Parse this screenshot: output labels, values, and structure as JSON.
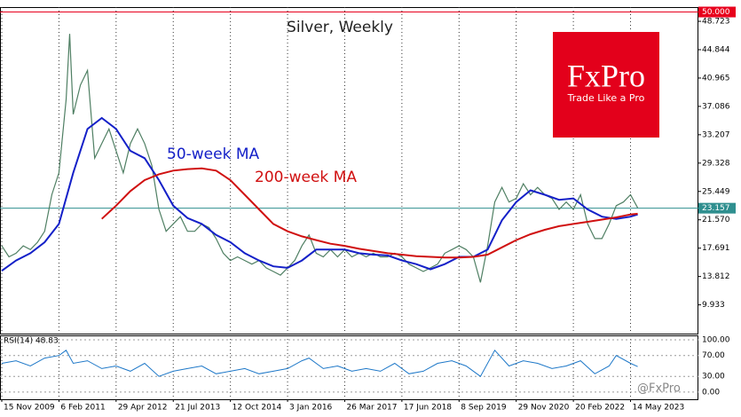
{
  "chart_data": [
    {
      "type": "line",
      "title": "Silver, Weekly",
      "xlim": [
        -2,
        780
      ],
      "xticks": [
        {
          "value": 0,
          "label": "15 Nov 2009"
        },
        {
          "value": 64,
          "label": "6 Feb 2011"
        },
        {
          "value": 128,
          "label": "29 Apr 2012"
        },
        {
          "value": 192,
          "label": "21 Jul 2013"
        },
        {
          "value": 256,
          "label": "12 Oct 2014"
        },
        {
          "value": 320,
          "label": "3 Jan 2016"
        },
        {
          "value": 384,
          "label": "26 Mar 2017"
        },
        {
          "value": 448,
          "label": "17 Jun 2018"
        },
        {
          "value": 512,
          "label": "8 Sep 2019"
        },
        {
          "value": 576,
          "label": "29 Nov 2020"
        },
        {
          "value": 640,
          "label": "20 Feb 2022"
        },
        {
          "value": 704,
          "label": "14 May 2023"
        }
      ],
      "ylim": [
        6.0,
        50.67
      ],
      "yticks": [
        48.723,
        44.844,
        40.965,
        37.086,
        33.207,
        29.328,
        25.449,
        {
          "value": 21.57,
          "label": "21.570"
        },
        17.691,
        13.812,
        9.933
      ],
      "hlines": [
        {
          "value": 50,
          "label": "50.000",
          "color": "#e8001c"
        },
        {
          "value": 23.157,
          "label": "23.157",
          "color": "#2f8f8f"
        }
      ],
      "vgrid": true,
      "series": [
        {
          "color": "#4f7f63",
          "x": [
            0,
            8,
            16,
            24,
            32,
            40,
            48,
            56,
            64,
            72,
            76,
            80,
            88,
            96,
            104,
            112,
            120,
            128,
            136,
            144,
            152,
            160,
            168,
            176,
            184,
            192,
            200,
            208,
            216,
            224,
            232,
            240,
            248,
            256,
            264,
            272,
            280,
            288,
            296,
            304,
            312,
            320,
            328,
            336,
            344,
            352,
            360,
            368,
            376,
            384,
            392,
            400,
            408,
            416,
            424,
            432,
            440,
            448,
            456,
            464,
            472,
            480,
            488,
            496,
            504,
            512,
            520,
            528,
            536,
            544,
            552,
            560,
            568,
            576,
            584,
            592,
            600,
            608,
            616,
            624,
            632,
            640,
            648,
            656,
            664,
            672,
            680,
            688,
            696,
            704,
            712
          ],
          "values": [
            18,
            16.5,
            17,
            18,
            17.5,
            18.5,
            20,
            25,
            28,
            38,
            47,
            36,
            40,
            42,
            30,
            32,
            34,
            31,
            28,
            32,
            34,
            32,
            29,
            23,
            20,
            21,
            22,
            20,
            20,
            21,
            20.5,
            19,
            17,
            16,
            16.5,
            16,
            15.5,
            16,
            15,
            14.5,
            14,
            15,
            16,
            18,
            19.5,
            17,
            16.5,
            17.5,
            16.5,
            17.5,
            16.5,
            17,
            16.5,
            17,
            16.5,
            16.5,
            17,
            16.5,
            15.5,
            15,
            14.5,
            15,
            15.5,
            17,
            17.5,
            18,
            17.5,
            16.5,
            13,
            18,
            24,
            26,
            24,
            24.5,
            26.5,
            25,
            26,
            25,
            24.5,
            23,
            24,
            23,
            25,
            21,
            19,
            19,
            21,
            23.5,
            24,
            25,
            23.2
          ]
        },
        {
          "name": "50-week MA",
          "color": "#1420c8",
          "x": [
            0,
            16,
            32,
            48,
            64,
            80,
            96,
            112,
            128,
            144,
            160,
            176,
            192,
            208,
            224,
            240,
            256,
            272,
            288,
            304,
            320,
            336,
            352,
            368,
            384,
            400,
            416,
            432,
            448,
            464,
            480,
            496,
            512,
            528,
            544,
            560,
            576,
            592,
            608,
            624,
            640,
            656,
            672,
            688,
            704,
            712
          ],
          "values": [
            14.6,
            16,
            17,
            18.5,
            21,
            28,
            34,
            35.5,
            34,
            31,
            30,
            27,
            23.5,
            21.8,
            21,
            19.5,
            18.5,
            17,
            16,
            15.2,
            15,
            16,
            17.5,
            17.5,
            17.5,
            17,
            16.8,
            16.7,
            16,
            15.5,
            14.8,
            15.5,
            16.5,
            16.5,
            17.5,
            21.5,
            24,
            25.6,
            25,
            24.3,
            24.5,
            23,
            22,
            21.7,
            22,
            22.3
          ]
        },
        {
          "name": "200-week MA",
          "color": "#d01010",
          "x": [
            112,
            128,
            144,
            160,
            176,
            192,
            208,
            224,
            240,
            256,
            272,
            288,
            304,
            320,
            336,
            352,
            368,
            384,
            400,
            416,
            432,
            448,
            464,
            480,
            496,
            512,
            528,
            544,
            560,
            576,
            592,
            608,
            624,
            640,
            656,
            672,
            688,
            704,
            712
          ],
          "values": [
            21.7,
            23.5,
            25.5,
            27,
            27.8,
            28.3,
            28.5,
            28.6,
            28.3,
            27,
            25,
            23,
            21,
            20,
            19.3,
            18.8,
            18.3,
            18,
            17.6,
            17.3,
            17,
            16.8,
            16.6,
            16.5,
            16.4,
            16.4,
            16.5,
            16.8,
            17.8,
            18.8,
            19.6,
            20.2,
            20.7,
            21,
            21.3,
            21.6,
            21.9,
            22.3,
            22.4
          ]
        }
      ],
      "logo": {
        "title": "FxPro",
        "subtitle": "Trade Like a Pro",
        "color": "#e3001b"
      }
    },
    {
      "type": "line",
      "title": "RSI(14) 48.83",
      "xlim": [
        -2,
        780
      ],
      "ylim": [
        -13.8,
        108.6
      ],
      "yticks": [
        {
          "value": 100,
          "label": "100.00"
        },
        {
          "value": 70,
          "label": "70.00"
        },
        {
          "value": 30,
          "label": "30.00"
        },
        {
          "value": 0,
          "label": "0.00"
        }
      ],
      "series": [
        {
          "color": "#1e78c8",
          "x": [
            0,
            16,
            32,
            48,
            64,
            72,
            80,
            96,
            112,
            128,
            144,
            160,
            176,
            192,
            208,
            224,
            240,
            256,
            272,
            288,
            304,
            320,
            336,
            344,
            360,
            376,
            392,
            408,
            424,
            440,
            456,
            472,
            488,
            504,
            520,
            536,
            552,
            568,
            584,
            600,
            616,
            632,
            648,
            664,
            680,
            688,
            704,
            712
          ],
          "values": [
            55,
            60,
            50,
            65,
            70,
            80,
            55,
            60,
            45,
            50,
            40,
            55,
            30,
            40,
            45,
            50,
            35,
            40,
            45,
            35,
            40,
            45,
            60,
            65,
            45,
            50,
            40,
            45,
            40,
            55,
            35,
            40,
            55,
            60,
            50,
            30,
            80,
            50,
            60,
            55,
            45,
            50,
            60,
            35,
            50,
            70,
            55,
            48.83
          ]
        }
      ],
      "watermark": "@FxPro"
    }
  ]
}
